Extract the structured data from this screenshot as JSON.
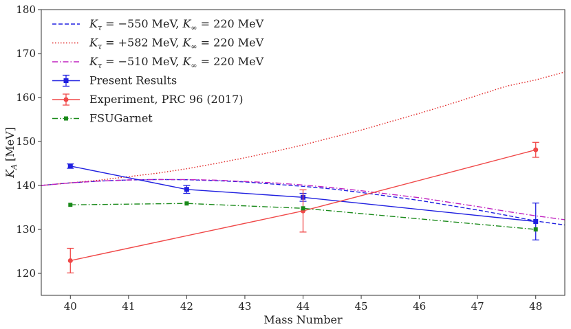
{
  "chart_data": {
    "type": "line",
    "title": "",
    "xlabel": "Mass Number",
    "ylabel_symbol": "K",
    "ylabel_subscript": "A",
    "ylabel_unit": "[MeV]",
    "xlim": [
      39.5,
      48.5
    ],
    "ylim": [
      115,
      180
    ],
    "xticks": [
      40,
      41,
      42,
      43,
      44,
      45,
      46,
      47,
      48
    ],
    "yticks": [
      120,
      130,
      140,
      150,
      160,
      170,
      180
    ],
    "grid": false,
    "legend_position": "top-left",
    "curves": [
      {
        "name": "Kτ = −550 MeV, K∞ = 220 MeV",
        "legend": {
          "pre": "K",
          "sub": "τ",
          "mid1": " = −550 MeV, ",
          "k2": "K",
          "sub2": "∞",
          "post": " = 220 MeV"
        },
        "color": "#1f1fe0",
        "style": "dashed",
        "x": [
          39.5,
          40,
          40.5,
          41,
          41.5,
          42,
          42.5,
          43,
          43.5,
          44,
          44.5,
          45,
          45.5,
          46,
          46.5,
          47,
          47.5,
          48,
          48.5
        ],
        "y": [
          140.0,
          140.6,
          141.0,
          141.25,
          141.35,
          141.3,
          141.1,
          140.8,
          140.3,
          139.8,
          139.2,
          138.4,
          137.5,
          136.6,
          135.5,
          134.4,
          133.2,
          131.9,
          131.0
        ]
      },
      {
        "name": "Kτ = +582 MeV, K∞ = 220 MeV",
        "legend": {
          "pre": "K",
          "sub": "τ",
          "mid1": " = +582 MeV, ",
          "k2": "K",
          "sub2": "∞",
          "post": " = 220 MeV"
        },
        "color": "#e02020",
        "style": "dotted",
        "x": [
          39.5,
          40,
          40.5,
          41,
          41.5,
          42,
          42.5,
          43,
          43.5,
          44,
          44.5,
          45,
          45.5,
          46,
          46.5,
          47,
          47.5,
          48,
          48.5
        ],
        "y": [
          140.0,
          140.6,
          141.2,
          142.0,
          142.8,
          143.8,
          145.0,
          146.3,
          147.7,
          149.2,
          150.9,
          152.6,
          154.5,
          156.4,
          158.4,
          160.5,
          162.6,
          164.0,
          165.8
        ]
      },
      {
        "name": "Kτ = −510 MeV, K∞ = 220 MeV",
        "legend": {
          "pre": "K",
          "sub": "τ",
          "mid1": " = −510 MeV, ",
          "k2": "K",
          "sub2": "∞",
          "post": " = 220 MeV"
        },
        "color": "#c020c0",
        "style": "dashdot",
        "x": [
          39.5,
          40,
          40.5,
          41,
          41.5,
          42,
          42.5,
          43,
          43.5,
          44,
          44.5,
          45,
          45.5,
          46,
          46.5,
          47,
          47.5,
          48,
          48.5
        ],
        "y": [
          140.0,
          140.6,
          141.0,
          141.25,
          141.35,
          141.35,
          141.2,
          140.9,
          140.6,
          140.1,
          139.5,
          138.8,
          138.0,
          137.2,
          136.2,
          135.2,
          134.1,
          133.1,
          132.2
        ]
      }
    ],
    "series": [
      {
        "name": "Present Results",
        "color": "#1f1fe0",
        "style": "solid",
        "marker": "square",
        "x": [
          40,
          42,
          44,
          48
        ],
        "y": [
          144.4,
          139.1,
          137.3,
          131.8
        ],
        "yerr": [
          0.5,
          0.9,
          0.9,
          4.2
        ]
      },
      {
        "name": "Experiment, PRC 96 (2017)",
        "color": "#f04848",
        "style": "solid",
        "marker": "circle",
        "x": [
          40,
          44,
          48
        ],
        "y": [
          122.9,
          134.2,
          148.1
        ],
        "yerr": [
          2.8,
          4.8,
          1.7
        ]
      },
      {
        "name": "FSUGarnet",
        "color": "#1a8a1a",
        "style": "dashdot",
        "marker": "square-small",
        "x": [
          40,
          42,
          44,
          48
        ],
        "y": [
          135.6,
          135.9,
          134.8,
          130.0
        ],
        "yerr": [
          0,
          0,
          0,
          0
        ]
      }
    ]
  }
}
